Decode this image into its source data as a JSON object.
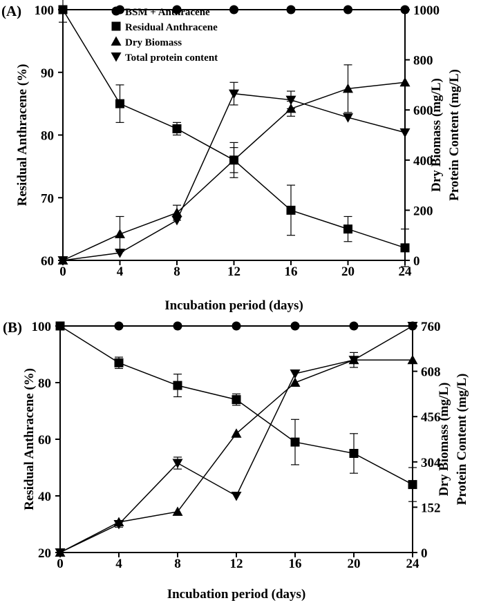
{
  "chart_data": [
    {
      "type": "line",
      "panel_label": "(A)",
      "x": [
        0,
        4,
        8,
        12,
        16,
        20,
        24
      ],
      "xticks": [
        0,
        4,
        8,
        12,
        16,
        20,
        24
      ],
      "xlim": [
        0,
        24
      ],
      "xlabel": "Incubation period (days)",
      "ylabel": "Residual Anthracene (%)",
      "ylim": [
        60,
        100
      ],
      "yticks": [
        60,
        70,
        80,
        90,
        100
      ],
      "y2label_lines": [
        "Dry Biomass (mg/L)",
        "Protein Content (mg/L)"
      ],
      "y2lim": [
        0,
        1000
      ],
      "y2ticks": [
        0,
        200,
        400,
        600,
        800,
        1000
      ],
      "legend": {
        "placement": "top-center"
      },
      "series": [
        {
          "name": "BSM + Anthracene",
          "marker": "circle",
          "axis": "left",
          "connected": true,
          "values": [
            100,
            100,
            100,
            100,
            100,
            100,
            100
          ]
        },
        {
          "name": "Residual Anthracene",
          "marker": "square",
          "axis": "left",
          "connected": true,
          "values": [
            100,
            85,
            81,
            76,
            68,
            65,
            62
          ],
          "errors": [
            2,
            3,
            1,
            2,
            4,
            2,
            3
          ]
        },
        {
          "name": "Dry Biomass",
          "marker": "triangle-up",
          "axis": "right",
          "connected": true,
          "values": [
            0,
            105,
            190,
            400,
            605,
            685,
            710
          ],
          "errors": [
            0,
            70,
            30,
            70,
            30,
            95,
            0
          ]
        },
        {
          "name": "Total protein content",
          "marker": "triangle-down",
          "axis": "right",
          "connected": true,
          "values": [
            0,
            30,
            160,
            665,
            640,
            570,
            510
          ],
          "errors": [
            0,
            0,
            0,
            45,
            35,
            0,
            0
          ]
        }
      ]
    },
    {
      "type": "line",
      "panel_label": "(B)",
      "x": [
        0,
        4,
        8,
        12,
        16,
        20,
        24
      ],
      "xticks": [
        0,
        4,
        8,
        12,
        16,
        20,
        24
      ],
      "xlim": [
        0,
        24
      ],
      "xlabel": "Incubation period (days)",
      "ylabel": "Residual Anthracene (%)",
      "ylim": [
        20,
        100
      ],
      "yticks": [
        20,
        40,
        60,
        80,
        100
      ],
      "y2label_lines": [
        "Dry Biomass (mg/L)",
        "Protein Content (mg/L)"
      ],
      "y2lim": [
        0,
        760
      ],
      "y2ticks": [
        0,
        152,
        304,
        456,
        608,
        760
      ],
      "legend": {
        "placement": "none"
      },
      "series": [
        {
          "name": "BSM + Anthracene",
          "marker": "circle",
          "axis": "left",
          "connected": true,
          "values": [
            100,
            100,
            100,
            100,
            100,
            100,
            100
          ]
        },
        {
          "name": "Residual Anthracene",
          "marker": "square",
          "axis": "left",
          "connected": true,
          "values": [
            100,
            87,
            79,
            74,
            59,
            55,
            44
          ],
          "errors": [
            0,
            2,
            4,
            2,
            8,
            7,
            6
          ]
        },
        {
          "name": "Dry Biomass",
          "marker": "triangle-up",
          "axis": "right",
          "connected": true,
          "values": [
            0,
            102,
            137,
            399,
            570,
            646,
            646
          ]
        },
        {
          "name": "Total protein content",
          "marker": "triangle-down",
          "axis": "right",
          "connected": true,
          "values": [
            0,
            95,
            300,
            190,
            600,
            646,
            760
          ],
          "errors": [
            0,
            10,
            20,
            0,
            0,
            25,
            0
          ]
        }
      ]
    }
  ]
}
